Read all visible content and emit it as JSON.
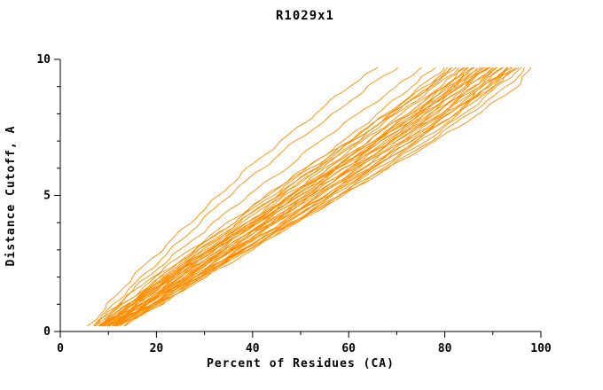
{
  "chart_data": {
    "type": "line",
    "title": "R1029x1",
    "xlabel": "Percent of Residues (CA)",
    "ylabel": "Distance Cutoff, A",
    "xlim": [
      0,
      100
    ],
    "ylim": [
      0,
      10
    ],
    "x_major_ticks": [
      0,
      20,
      40,
      60,
      80,
      100
    ],
    "x_minor_step": 10,
    "y_major_ticks": [
      0,
      5,
      10
    ],
    "y_minor_step": 1,
    "grid": false,
    "legend": "none",
    "line_color": "#FF8C00",
    "axis_color": "#000000",
    "cutoffs": [
      0.2,
      1,
      2,
      3,
      4,
      5,
      6,
      7,
      8,
      9,
      9.7
    ],
    "series": [
      [
        7,
        13,
        21,
        28,
        36,
        43,
        51,
        59,
        66,
        73,
        78
      ],
      [
        8,
        14,
        22,
        30,
        37,
        45,
        53,
        60,
        68,
        75,
        80
      ],
      [
        8,
        15,
        23,
        31,
        39,
        46,
        54,
        62,
        69,
        77,
        82
      ],
      [
        9,
        15,
        23,
        31,
        40,
        48,
        55,
        63,
        71,
        79,
        84
      ],
      [
        9,
        16,
        24,
        32,
        41,
        49,
        57,
        65,
        73,
        80,
        85
      ],
      [
        10,
        16,
        25,
        33,
        41,
        50,
        58,
        66,
        74,
        81,
        86
      ],
      [
        10,
        17,
        25,
        34,
        42,
        51,
        59,
        67,
        75,
        82,
        87
      ],
      [
        11,
        18,
        26,
        34,
        43,
        51,
        60,
        68,
        76,
        83,
        88
      ],
      [
        11,
        18,
        27,
        35,
        44,
        52,
        61,
        69,
        77,
        84,
        89
      ],
      [
        12,
        19,
        27,
        36,
        44,
        53,
        61,
        70,
        78,
        85,
        90
      ],
      [
        12,
        19,
        28,
        36,
        45,
        54,
        62,
        71,
        79,
        86,
        91
      ],
      [
        13,
        20,
        28,
        37,
        46,
        55,
        63,
        72,
        80,
        87,
        92
      ],
      [
        13,
        20,
        29,
        38,
        47,
        56,
        64,
        73,
        81,
        88,
        93
      ],
      [
        12,
        21,
        30,
        39,
        48,
        57,
        65,
        74,
        82,
        89,
        94
      ],
      [
        11,
        20,
        30,
        40,
        49,
        58,
        66,
        75,
        83,
        90,
        95
      ],
      [
        10,
        19,
        29,
        39,
        49,
        58,
        67,
        76,
        84,
        91,
        96
      ],
      [
        6,
        10,
        15,
        21,
        27,
        33,
        39,
        46,
        53,
        60,
        66
      ],
      [
        7,
        11,
        17,
        23,
        29,
        35,
        42,
        49,
        57,
        64,
        70
      ],
      [
        10,
        18,
        28,
        38,
        49,
        59,
        68,
        77,
        85,
        93,
        97
      ],
      [
        9,
        17,
        27,
        38,
        48,
        58,
        68,
        78,
        87,
        95,
        98
      ],
      [
        8,
        14,
        21,
        29,
        38,
        46,
        54,
        62,
        70,
        78,
        83
      ],
      [
        9,
        15,
        22,
        30,
        39,
        47,
        56,
        64,
        72,
        80,
        85
      ],
      [
        10,
        17,
        24,
        33,
        41,
        50,
        58,
        67,
        75,
        83,
        88
      ],
      [
        11,
        17,
        26,
        35,
        43,
        52,
        60,
        69,
        77,
        85,
        90
      ],
      [
        12,
        18,
        26,
        35,
        44,
        53,
        62,
        70,
        79,
        87,
        92
      ],
      [
        8,
        13,
        20,
        28,
        36,
        44,
        52,
        61,
        69,
        77,
        82
      ],
      [
        9,
        14,
        22,
        31,
        39,
        48,
        57,
        65,
        74,
        82,
        87
      ],
      [
        10,
        16,
        24,
        32,
        41,
        49,
        58,
        66,
        75,
        83,
        89
      ],
      [
        11,
        19,
        28,
        37,
        46,
        55,
        64,
        72,
        81,
        89,
        94
      ],
      [
        7,
        12,
        19,
        27,
        35,
        43,
        51,
        60,
        68,
        76,
        81
      ],
      [
        8,
        15,
        23,
        32,
        40,
        49,
        57,
        66,
        74,
        82,
        86
      ],
      [
        7,
        12,
        18,
        25,
        32,
        39,
        47,
        54,
        62,
        70,
        75
      ],
      [
        9,
        16,
        23,
        31,
        40,
        48,
        56,
        64,
        72,
        80,
        84
      ],
      [
        10,
        18,
        26,
        34,
        42,
        51,
        59,
        68,
        76,
        84,
        89
      ],
      [
        11,
        19,
        27,
        36,
        45,
        54,
        63,
        71,
        80,
        88,
        93
      ],
      [
        12,
        20,
        29,
        38,
        47,
        56,
        65,
        74,
        82,
        90,
        95
      ],
      [
        8,
        14,
        22,
        29,
        37,
        45,
        53,
        61,
        69,
        77,
        81
      ],
      [
        9,
        15,
        23,
        31,
        40,
        48,
        57,
        65,
        73,
        81,
        86
      ],
      [
        10,
        17,
        25,
        34,
        43,
        52,
        61,
        69,
        78,
        86,
        91
      ],
      [
        13,
        21,
        29,
        38,
        47,
        56,
        65,
        73,
        81,
        89,
        93
      ]
    ]
  }
}
